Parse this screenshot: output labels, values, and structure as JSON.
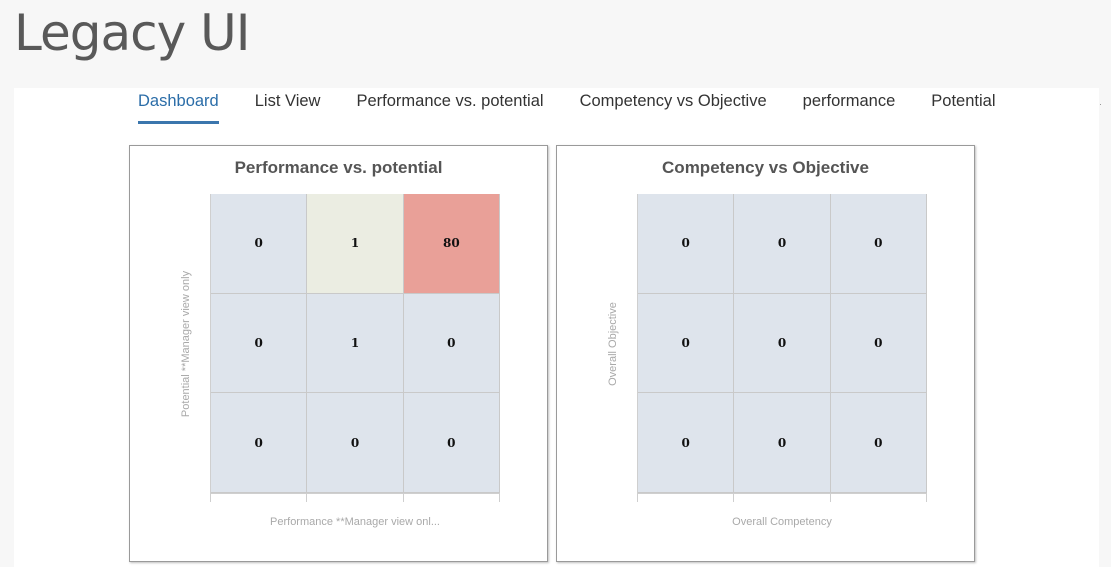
{
  "page": {
    "title": "Legacy UI"
  },
  "tabs": [
    {
      "label": "Dashboard",
      "active": true
    },
    {
      "label": "List View",
      "active": false
    },
    {
      "label": "Performance vs. potential",
      "active": false
    },
    {
      "label": "Competency vs Objective",
      "active": false
    },
    {
      "label": "performance",
      "active": false
    },
    {
      "label": "Potential",
      "active": false
    }
  ],
  "cards": [
    {
      "title": "Performance vs. potential",
      "y_label": "Potential **Manager view only",
      "x_label": "Performance **Manager view onl...",
      "rows": [
        [
          "0",
          "1",
          "80"
        ],
        [
          "0",
          "1",
          "0"
        ],
        [
          "0",
          "0",
          "0"
        ]
      ]
    },
    {
      "title": "Competency vs Objective",
      "y_label": "Overall Objective",
      "x_label": "Overall Competency",
      "rows": [
        [
          "0",
          "0",
          "0"
        ],
        [
          "0",
          "0",
          "0"
        ],
        [
          "0",
          "0",
          "0"
        ]
      ]
    }
  ],
  "chart_data": [
    {
      "type": "heatmap",
      "title": "Performance vs. potential",
      "xlabel": "Performance **Manager view onl...",
      "ylabel": "Potential **Manager view only",
      "values": [
        [
          0,
          1,
          80
        ],
        [
          0,
          1,
          0
        ],
        [
          0,
          0,
          0
        ]
      ]
    },
    {
      "type": "heatmap",
      "title": "Competency vs Objective",
      "xlabel": "Overall Competency",
      "ylabel": "Overall Objective",
      "values": [
        [
          0,
          0,
          0
        ],
        [
          0,
          0,
          0
        ],
        [
          0,
          0,
          0
        ]
      ]
    }
  ],
  "colors": {
    "cell_default": "#dee4ec",
    "cell_low": "#ebede2",
    "cell_high": "#e9a098",
    "tab_active": "#2b6da8"
  }
}
